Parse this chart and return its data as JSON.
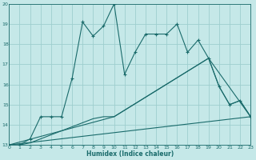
{
  "xlabel": "Humidex (Indice chaleur)",
  "bg_color": "#c5e8e8",
  "grid_color": "#9ecece",
  "line_color": "#1a6b6b",
  "xlim": [
    0,
    23
  ],
  "ylim": [
    13,
    20
  ],
  "yticks": [
    13,
    14,
    15,
    16,
    17,
    18,
    19,
    20
  ],
  "xticks": [
    0,
    1,
    2,
    3,
    4,
    5,
    6,
    7,
    8,
    9,
    10,
    11,
    12,
    13,
    14,
    15,
    16,
    17,
    18,
    19,
    20,
    21,
    22,
    23
  ],
  "line1_x": [
    0,
    1,
    2,
    3,
    4,
    5,
    6,
    7,
    8,
    9,
    10,
    11,
    12,
    13,
    14,
    15,
    16,
    17,
    18,
    19,
    20,
    21,
    22,
    23
  ],
  "line1_y": [
    13.0,
    13.0,
    13.3,
    14.4,
    14.4,
    14.4,
    16.3,
    19.1,
    18.4,
    18.9,
    20.0,
    16.5,
    17.6,
    18.5,
    18.5,
    18.5,
    19.0,
    17.6,
    18.2,
    17.3,
    15.9,
    15.0,
    15.2,
    14.4
  ],
  "line2_x": [
    0,
    1,
    2,
    3,
    4,
    5,
    6,
    7,
    8,
    9,
    10,
    19,
    20,
    21,
    22,
    23
  ],
  "line2_y": [
    13.0,
    13.0,
    13.1,
    13.3,
    13.5,
    13.7,
    13.9,
    14.1,
    14.3,
    14.4,
    14.4,
    17.3,
    15.9,
    15.0,
    15.2,
    14.4
  ],
  "line3_x": [
    0,
    23
  ],
  "line3_y": [
    13.0,
    14.4
  ],
  "line4_x": [
    0,
    10,
    19,
    23
  ],
  "line4_y": [
    13.0,
    14.4,
    17.3,
    14.4
  ]
}
